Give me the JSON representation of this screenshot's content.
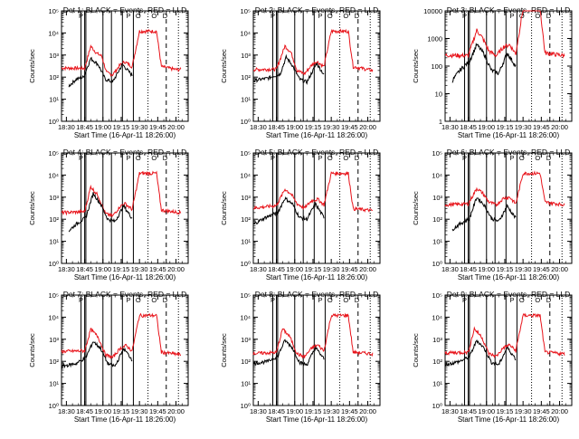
{
  "chart_data": {
    "type": "line",
    "layout": "3x3 grid",
    "xlabel": "Start Time (16-Apr-11 18:26:00)",
    "x_tick_labels": [
      "18:30",
      "18:45",
      "19:00",
      "19:15",
      "19:30",
      "19:45",
      "20:00"
    ],
    "x_ticks_min": [
      30,
      45,
      60,
      75,
      90,
      105,
      120
    ],
    "xlim_min": [
      26,
      130
    ],
    "ylabel": "Counts/sec",
    "y_scale": "log",
    "grid": false,
    "series_colors": {
      "events": "#000000",
      "lld": "#e8141b"
    },
    "markers": [
      {
        "label": "P",
        "x_min": 42
      },
      {
        "label": "P",
        "x_min": 81
      },
      {
        "label": "O",
        "x_min": 89
      },
      {
        "label": "O",
        "x_min": 102
      },
      {
        "label": "D",
        "x_min": 111
      }
    ],
    "vertical_lines_min": {
      "solid": [
        42,
        45,
        46,
        60,
        67,
        76,
        85
      ],
      "dotted": [
        97,
        122
      ],
      "dashed": [
        112
      ]
    },
    "panels": [
      {
        "title": "Det 1: BLACK = Events, RED = LLD",
        "ylim": [
          1,
          100000
        ],
        "y_tick_labels": [
          "10⁰",
          "10¹",
          "10²",
          "10³",
          "10⁴",
          "10⁵"
        ],
        "events_min": [
          [
            32,
            40
          ],
          [
            38,
            80
          ],
          [
            44,
            100
          ],
          [
            50,
            700
          ],
          [
            56,
            380
          ],
          [
            62,
            80
          ],
          [
            68,
            60
          ],
          [
            76,
            380
          ],
          [
            84,
            120
          ]
        ],
        "lld_min": [
          [
            26,
            260
          ],
          [
            45,
            250
          ],
          [
            50,
            2500
          ],
          [
            55,
            1200
          ],
          [
            59,
            900
          ],
          [
            63,
            160
          ],
          [
            68,
            130
          ],
          [
            74,
            350
          ],
          [
            78,
            500
          ],
          [
            84,
            300
          ],
          [
            90,
            12000
          ],
          [
            104,
            12000
          ],
          [
            108,
            300
          ],
          [
            120,
            220
          ]
        ]
      },
      {
        "title": "Det 2: BLACK = Events, RED = LLD",
        "ylim": [
          1,
          100000
        ],
        "y_tick_labels": [
          "10⁰",
          "10¹",
          "10²",
          "10³",
          "10⁴",
          "10⁵"
        ],
        "events_min": [
          [
            26,
            70
          ],
          [
            38,
            90
          ],
          [
            48,
            140
          ],
          [
            53,
            800
          ],
          [
            58,
            350
          ],
          [
            64,
            80
          ],
          [
            70,
            60
          ],
          [
            78,
            420
          ],
          [
            84,
            130
          ]
        ],
        "lld_min": [
          [
            26,
            220
          ],
          [
            45,
            230
          ],
          [
            52,
            2600
          ],
          [
            57,
            1300
          ],
          [
            62,
            200
          ],
          [
            68,
            140
          ],
          [
            74,
            360
          ],
          [
            78,
            520
          ],
          [
            84,
            300
          ],
          [
            90,
            12000
          ],
          [
            104,
            12000
          ],
          [
            108,
            300
          ],
          [
            124,
            200
          ]
        ]
      },
      {
        "title": "Det 3: BLACK = Events, RED = LLD",
        "ylim": [
          1,
          10000
        ],
        "y_tick_labels": [
          "1",
          "10",
          "100",
          "1000",
          "10000"
        ],
        "events_min": [
          [
            32,
            30
          ],
          [
            38,
            70
          ],
          [
            46,
            150
          ],
          [
            52,
            600
          ],
          [
            58,
            280
          ],
          [
            64,
            70
          ],
          [
            70,
            55
          ],
          [
            77,
            300
          ],
          [
            84,
            100
          ]
        ],
        "lld_min": [
          [
            26,
            250
          ],
          [
            45,
            240
          ],
          [
            52,
            2000
          ],
          [
            57,
            1000
          ],
          [
            62,
            350
          ],
          [
            68,
            240
          ],
          [
            74,
            500
          ],
          [
            79,
            600
          ],
          [
            84,
            280
          ],
          [
            90,
            12000
          ],
          [
            104,
            12000
          ],
          [
            108,
            300
          ],
          [
            124,
            240
          ]
        ]
      },
      {
        "title": "Det 4: BLACK = Events, RED = LLD",
        "ylim": [
          1,
          100000
        ],
        "y_tick_labels": [
          "10⁰",
          "10¹",
          "10²",
          "10³",
          "10⁴",
          "10⁵"
        ],
        "events_min": [
          [
            32,
            30
          ],
          [
            38,
            60
          ],
          [
            46,
            120
          ],
          [
            52,
            1500
          ],
          [
            58,
            500
          ],
          [
            64,
            100
          ],
          [
            70,
            80
          ],
          [
            77,
            400
          ],
          [
            84,
            110
          ]
        ],
        "lld_min": [
          [
            26,
            200
          ],
          [
            45,
            220
          ],
          [
            50,
            3000
          ],
          [
            56,
            1200
          ],
          [
            62,
            180
          ],
          [
            68,
            140
          ],
          [
            74,
            380
          ],
          [
            78,
            520
          ],
          [
            84,
            280
          ],
          [
            90,
            12000
          ],
          [
            104,
            12000
          ],
          [
            108,
            260
          ],
          [
            124,
            200
          ]
        ]
      },
      {
        "title": "Det 5: BLACK = Events, RED = LLD",
        "ylim": [
          1,
          100000
        ],
        "y_tick_labels": [
          "10⁰",
          "10¹",
          "10²",
          "10³",
          "10⁴",
          "10⁵"
        ],
        "events_min": [
          [
            26,
            60
          ],
          [
            36,
            120
          ],
          [
            46,
            200
          ],
          [
            52,
            900
          ],
          [
            58,
            500
          ],
          [
            64,
            120
          ],
          [
            70,
            100
          ],
          [
            77,
            500
          ],
          [
            84,
            120
          ]
        ],
        "lld_min": [
          [
            26,
            320
          ],
          [
            45,
            420
          ],
          [
            52,
            2300
          ],
          [
            57,
            1400
          ],
          [
            62,
            500
          ],
          [
            68,
            320
          ],
          [
            74,
            700
          ],
          [
            79,
            800
          ],
          [
            84,
            450
          ],
          [
            90,
            12000
          ],
          [
            104,
            12000
          ],
          [
            108,
            300
          ],
          [
            124,
            250
          ]
        ]
      },
      {
        "title": "Det 6: BLACK = Events, RED = LLD",
        "ylim": [
          1,
          100000
        ],
        "y_tick_labels": [
          "10⁰",
          "10¹",
          "10²",
          "10³",
          "10⁴",
          "10⁵"
        ],
        "events_min": [
          [
            32,
            35
          ],
          [
            38,
            60
          ],
          [
            46,
            110
          ],
          [
            52,
            1000
          ],
          [
            58,
            450
          ],
          [
            64,
            110
          ],
          [
            70,
            80
          ],
          [
            77,
            400
          ],
          [
            84,
            110
          ]
        ],
        "lld_min": [
          [
            26,
            450
          ],
          [
            45,
            500
          ],
          [
            52,
            2500
          ],
          [
            57,
            1500
          ],
          [
            62,
            600
          ],
          [
            68,
            450
          ],
          [
            74,
            900
          ],
          [
            79,
            1000
          ],
          [
            84,
            500
          ],
          [
            90,
            12000
          ],
          [
            104,
            12000
          ],
          [
            108,
            600
          ],
          [
            124,
            450
          ]
        ]
      },
      {
        "title": "Det 7: BLACK = Events, RED = LLD",
        "ylim": [
          1,
          100000
        ],
        "y_tick_labels": [
          "10⁰",
          "10¹",
          "10²",
          "10³",
          "10⁴",
          "10⁵"
        ],
        "events_min": [
          [
            26,
            60
          ],
          [
            38,
            80
          ],
          [
            46,
            150
          ],
          [
            52,
            800
          ],
          [
            58,
            400
          ],
          [
            64,
            80
          ],
          [
            70,
            60
          ],
          [
            77,
            380
          ],
          [
            84,
            120
          ]
        ],
        "lld_min": [
          [
            26,
            280
          ],
          [
            45,
            300
          ],
          [
            50,
            2800
          ],
          [
            56,
            1300
          ],
          [
            62,
            200
          ],
          [
            68,
            150
          ],
          [
            74,
            380
          ],
          [
            79,
            520
          ],
          [
            84,
            300
          ],
          [
            90,
            12000
          ],
          [
            104,
            12000
          ],
          [
            108,
            260
          ],
          [
            124,
            200
          ]
        ]
      },
      {
        "title": "Det 8: BLACK = Events, RED = LLD",
        "ylim": [
          1,
          100000
        ],
        "y_tick_labels": [
          "10⁰",
          "10¹",
          "10²",
          "10³",
          "10⁴",
          "10⁵"
        ],
        "events_min": [
          [
            26,
            80
          ],
          [
            38,
            100
          ],
          [
            46,
            170
          ],
          [
            52,
            900
          ],
          [
            58,
            420
          ],
          [
            64,
            90
          ],
          [
            70,
            70
          ],
          [
            77,
            420
          ],
          [
            84,
            130
          ]
        ],
        "lld_min": [
          [
            26,
            230
          ],
          [
            45,
            250
          ],
          [
            50,
            3000
          ],
          [
            56,
            1300
          ],
          [
            62,
            220
          ],
          [
            68,
            160
          ],
          [
            74,
            400
          ],
          [
            79,
            550
          ],
          [
            84,
            300
          ],
          [
            90,
            12000
          ],
          [
            104,
            12000
          ],
          [
            108,
            260
          ],
          [
            124,
            220
          ]
        ]
      },
      {
        "title": "Det 9: BLACK = Events, RED = LLD",
        "ylim": [
          1,
          100000
        ],
        "y_tick_labels": [
          "10⁰",
          "10¹",
          "10²",
          "10³",
          "10⁴",
          "10⁵"
        ],
        "events_min": [
          [
            26,
            70
          ],
          [
            38,
            100
          ],
          [
            46,
            160
          ],
          [
            52,
            900
          ],
          [
            58,
            400
          ],
          [
            64,
            90
          ],
          [
            70,
            70
          ],
          [
            77,
            420
          ],
          [
            84,
            130
          ]
        ],
        "lld_min": [
          [
            26,
            240
          ],
          [
            45,
            260
          ],
          [
            50,
            3000
          ],
          [
            56,
            1300
          ],
          [
            62,
            220
          ],
          [
            68,
            170
          ],
          [
            74,
            420
          ],
          [
            79,
            560
          ],
          [
            84,
            300
          ],
          [
            90,
            12000
          ],
          [
            104,
            12000
          ],
          [
            108,
            260
          ],
          [
            124,
            220
          ]
        ]
      }
    ]
  }
}
